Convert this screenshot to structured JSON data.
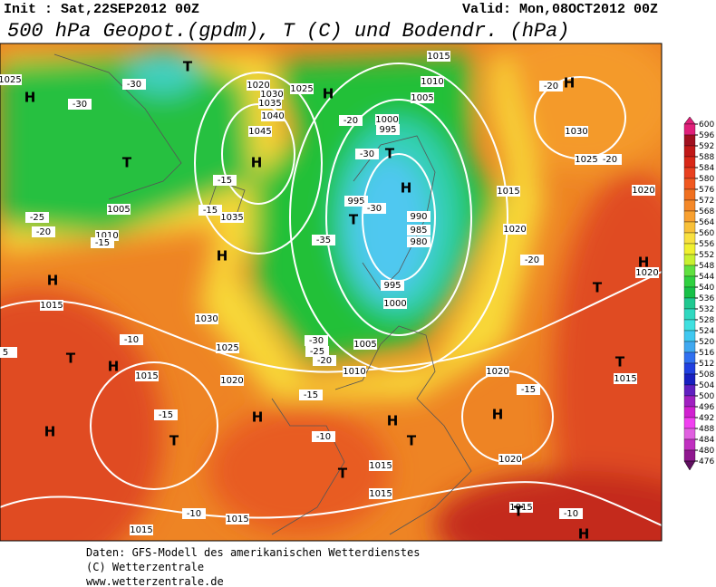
{
  "header": {
    "init": "Init : Sat,22SEP2012 00Z",
    "valid": "Valid: Mon,08OCT2012 00Z",
    "title": "500 hPa Geopot.(gpdm), T (C) und Bodendr. (hPa)"
  },
  "map": {
    "labels": [
      "H",
      "T",
      "H",
      "1045",
      "1040",
      "1035",
      "1030",
      "1020",
      "1025",
      "H",
      "1015",
      "1010",
      "1005",
      "1000",
      "995",
      "T",
      "-30",
      "-20",
      "H",
      "995",
      "T",
      "-30",
      "990",
      "985",
      "980",
      "995",
      "1000",
      "1005",
      "-30",
      "-25",
      "-20",
      "1010",
      "-15",
      "-35",
      "1035",
      "H",
      "1030",
      "1025",
      "1020",
      "-15",
      "-15",
      "1005",
      "1010",
      "-15",
      "-25",
      "-20",
      "H",
      "1015",
      "T",
      "H",
      "-10",
      "1015",
      "-15",
      "T",
      "H",
      "H",
      "-10",
      "T",
      "1015",
      "1015",
      "H",
      "T",
      "1020",
      "1020",
      "H",
      "-15",
      "1020",
      "-20",
      "1015",
      "H",
      "-20",
      "1030",
      "1025",
      "-20",
      "1020",
      "1020",
      "H",
      "T",
      "T",
      "1015",
      "1015",
      "T",
      "-10",
      "H",
      "1015",
      "-10",
      "1015",
      "-30",
      "-30",
      "T",
      "1025",
      "5"
    ]
  },
  "colorbar": {
    "ticks": [
      600,
      596,
      592,
      588,
      584,
      580,
      576,
      572,
      568,
      564,
      560,
      556,
      552,
      548,
      544,
      540,
      536,
      532,
      528,
      524,
      520,
      516,
      512,
      508,
      504,
      500,
      496,
      492,
      488,
      484,
      480,
      476
    ],
    "colors": [
      "#e0207a",
      "#a01020",
      "#c01818",
      "#d82818",
      "#e84020",
      "#f05820",
      "#f07020",
      "#f48828",
      "#f8a030",
      "#f8c038",
      "#f8e040",
      "#f0f030",
      "#c8f030",
      "#60e040",
      "#30d040",
      "#18c048",
      "#20c890",
      "#30d8c0",
      "#40e0e0",
      "#40c8f0",
      "#40a8f0",
      "#3070f0",
      "#2040e0",
      "#1820c0",
      "#6020c0",
      "#a020c0",
      "#d020d0",
      "#f040f0",
      "#e060e0",
      "#c030c0",
      "#901890",
      "#601060"
    ]
  },
  "footer": [
    "Daten: GFS-Modell des amerikanischen Wetterdienstes",
    "(C) Wetterzentrale",
    "www.wetterzentrale.de"
  ]
}
